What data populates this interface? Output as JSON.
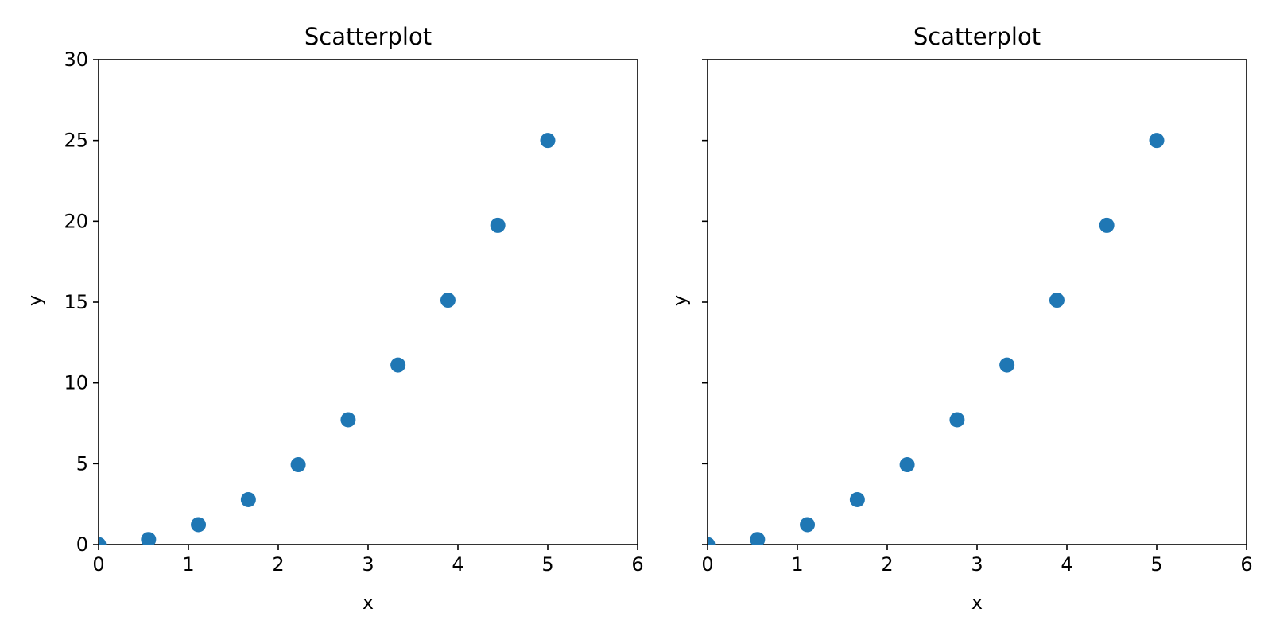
{
  "chart_data": [
    {
      "type": "scatter",
      "title": "Scatterplot",
      "xlabel": "x",
      "ylabel": "y",
      "xlim": [
        0,
        6
      ],
      "ylim": [
        0,
        30
      ],
      "xticks": [
        "0",
        "1",
        "2",
        "3",
        "4",
        "5",
        "6"
      ],
      "yticks": [
        "0",
        "5",
        "10",
        "15",
        "20",
        "25",
        "30"
      ],
      "grid": false,
      "color": "#1f77b4",
      "series": [
        {
          "x": [
            0,
            0.556,
            1.111,
            1.667,
            2.222,
            2.778,
            3.333,
            3.889,
            4.444,
            5.0
          ],
          "y": [
            0,
            0.31,
            1.23,
            2.78,
            4.94,
            7.72,
            11.11,
            15.12,
            19.75,
            25.0
          ]
        }
      ]
    },
    {
      "type": "scatter",
      "title": "Scatterplot",
      "xlabel": "x",
      "ylabel": "y",
      "xlim": [
        0,
        6
      ],
      "ylim": [
        0,
        30
      ],
      "xticks": [
        "0",
        "1",
        "2",
        "3",
        "4",
        "5",
        "6"
      ],
      "yticks": [],
      "grid": false,
      "color": "#1f77b4",
      "series": [
        {
          "x": [
            0,
            0.556,
            1.111,
            1.667,
            2.222,
            2.778,
            3.333,
            3.889,
            4.444,
            5.0
          ],
          "y": [
            0,
            0.31,
            1.23,
            2.78,
            4.94,
            7.72,
            11.11,
            15.12,
            19.75,
            25.0
          ]
        }
      ]
    }
  ]
}
